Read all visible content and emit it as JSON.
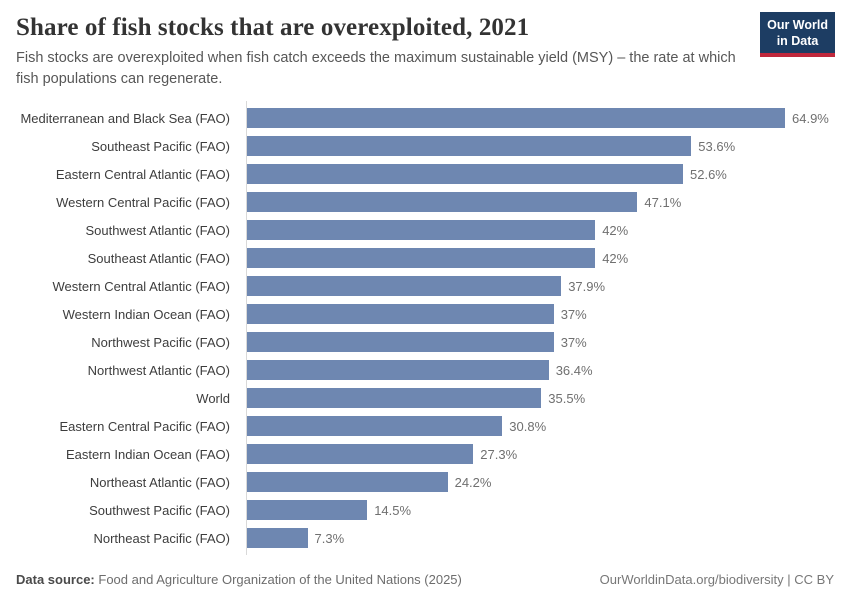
{
  "header": {
    "title": "Share of fish stocks that are overexploited, 2021",
    "subtitle": "Fish stocks are overexploited when fish catch exceeds the maximum sustainable yield (MSY) – the rate at which fish populations can regenerate.",
    "logo": {
      "line1": "Our World",
      "line2": "in Data",
      "bg_color": "#1d3d63",
      "accent_color": "#c0283c"
    }
  },
  "chart_data": {
    "type": "bar",
    "orientation": "horizontal",
    "title": "Share of fish stocks that are overexploited, 2021",
    "xlabel": "",
    "ylabel": "",
    "xlim": [
      0,
      64.9
    ],
    "grid": false,
    "legend": "none",
    "bar_color": "#6e87b1",
    "axis_color": "#d9d9d9",
    "categories": [
      "Mediterranean and Black Sea (FAO)",
      "Southeast Pacific (FAO)",
      "Eastern Central Atlantic (FAO)",
      "Western Central Pacific (FAO)",
      "Southwest Atlantic (FAO)",
      "Southeast Atlantic (FAO)",
      "Western Central Atlantic (FAO)",
      "Western Indian Ocean (FAO)",
      "Northwest Pacific (FAO)",
      "Northwest Atlantic (FAO)",
      "World",
      "Eastern Central Pacific (FAO)",
      "Eastern Indian Ocean (FAO)",
      "Northeast Atlantic (FAO)",
      "Southwest Pacific (FAO)",
      "Northeast Pacific (FAO)"
    ],
    "values": [
      64.9,
      53.6,
      52.6,
      47.1,
      42,
      42,
      37.9,
      37,
      37,
      36.4,
      35.5,
      30.8,
      27.3,
      24.2,
      14.5,
      7.3
    ],
    "value_labels": [
      "64.9%",
      "53.6%",
      "52.6%",
      "47.1%",
      "42%",
      "42%",
      "37.9%",
      "37%",
      "37%",
      "36.4%",
      "35.5%",
      "30.8%",
      "27.3%",
      "24.2%",
      "14.5%",
      "7.3%"
    ]
  },
  "footer": {
    "source_label": "Data source:",
    "source_text": "Food and Agriculture Organization of the United Nations (2025)",
    "attribution": "OurWorldinData.org/biodiversity | CC BY"
  }
}
